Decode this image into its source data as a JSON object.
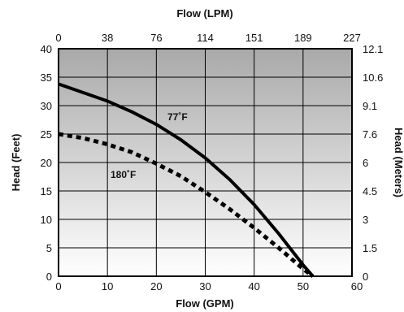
{
  "chart_data": {
    "type": "line",
    "x_axis_bottom": {
      "label": "Flow (GPM)",
      "range": [
        0,
        60
      ],
      "ticks": [
        "0",
        "10",
        "20",
        "30",
        "40",
        "50",
        "60"
      ]
    },
    "x_axis_top": {
      "label": "Flow (LPM)",
      "ticks": [
        "0",
        "38",
        "76",
        "114",
        "151",
        "189",
        "227"
      ]
    },
    "y_axis_left": {
      "label": "Head (Feet)",
      "range": [
        0,
        40
      ],
      "ticks": [
        "0",
        "5",
        "10",
        "15",
        "20",
        "25",
        "30",
        "35",
        "40"
      ]
    },
    "y_axis_right": {
      "label": "Head (Meters)",
      "ticks": [
        "0",
        "1.5",
        "3",
        "4.5",
        "6",
        "7.6",
        "9.1",
        "10.6",
        "12.1"
      ]
    },
    "grid": true,
    "series": [
      {
        "name": "77˚F",
        "style": "solid",
        "color": "#000000",
        "x": [
          0,
          5,
          10,
          15,
          20,
          25,
          30,
          35,
          40,
          45,
          50,
          52
        ],
        "y": [
          33.8,
          32.3,
          30.8,
          28.9,
          26.7,
          24.0,
          20.8,
          17.0,
          12.6,
          7.5,
          2.0,
          0
        ]
      },
      {
        "name": "180˚F",
        "style": "dotted",
        "color": "#000000",
        "x": [
          0,
          5,
          10,
          15,
          20,
          25,
          30,
          35,
          40,
          45,
          50,
          52
        ],
        "y": [
          25.0,
          24.3,
          23.2,
          21.8,
          19.8,
          17.6,
          14.8,
          11.8,
          8.5,
          5.0,
          1.3,
          0
        ]
      }
    ],
    "background": {
      "top": "#a9a9a9",
      "bottom": "#ffffff"
    }
  }
}
